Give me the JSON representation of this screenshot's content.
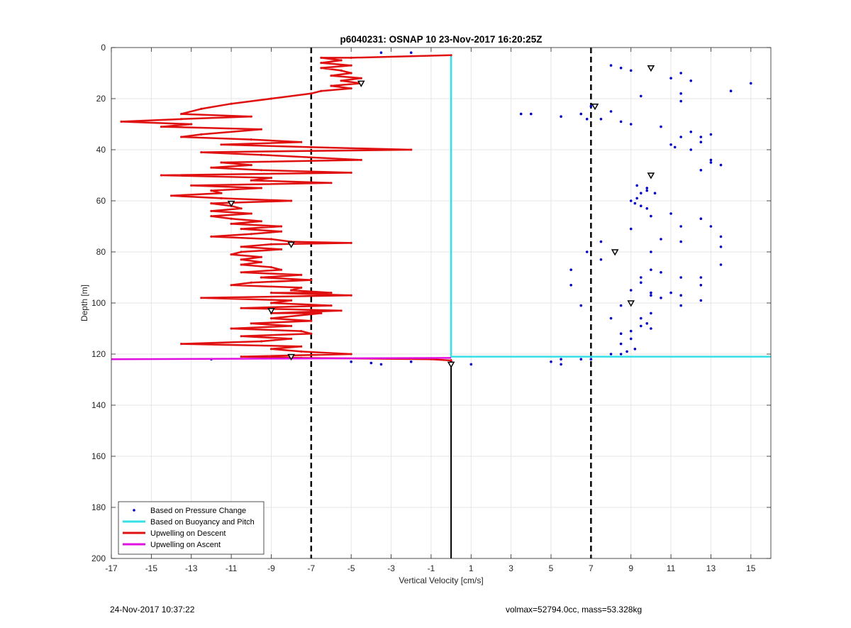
{
  "chart_data": {
    "type": "scatter",
    "title": "p6040231: OSNAP 10 23-Nov-2017 16:20:25Z",
    "xlabel": "Vertical Velocity [cm/s]",
    "ylabel": "Depth [m]",
    "xlim": [
      -17,
      16
    ],
    "ylim": [
      0,
      200
    ],
    "y_reversed": true,
    "grid": true,
    "xticks": [
      -17,
      -15,
      -13,
      -11,
      -9,
      -7,
      -5,
      -3,
      -1,
      1,
      3,
      5,
      7,
      9,
      11,
      13,
      15
    ],
    "yticks": [
      0,
      20,
      40,
      60,
      80,
      100,
      120,
      140,
      160,
      180,
      200
    ],
    "legend_position": "bottom-left",
    "vlines": [
      {
        "x": -7,
        "style": "dashed",
        "color": "#000000"
      },
      {
        "x": 7,
        "style": "dashed",
        "color": "#000000"
      }
    ],
    "series": [
      {
        "name": "Based on Pressure Change",
        "kind": "points",
        "color": "#0000cc",
        "points": [
          [
            -3.5,
            2
          ],
          [
            -2,
            2
          ],
          [
            8,
            7
          ],
          [
            8.5,
            8
          ],
          [
            9,
            9
          ],
          [
            11.5,
            10
          ],
          [
            11,
            12
          ],
          [
            12,
            13
          ],
          [
            15,
            14
          ],
          [
            14,
            17
          ],
          [
            11.5,
            18
          ],
          [
            9.5,
            19
          ],
          [
            11.5,
            21
          ],
          [
            7,
            23
          ],
          [
            8,
            25
          ],
          [
            3.5,
            26
          ],
          [
            4,
            26
          ],
          [
            5.5,
            27
          ],
          [
            6.5,
            26
          ],
          [
            6.8,
            28
          ],
          [
            7.5,
            28
          ],
          [
            8.5,
            29
          ],
          [
            9,
            30
          ],
          [
            10.5,
            31
          ],
          [
            12,
            33
          ],
          [
            13,
            34
          ],
          [
            11.5,
            35
          ],
          [
            12.5,
            35
          ],
          [
            12.5,
            37
          ],
          [
            11,
            38
          ],
          [
            11.2,
            39
          ],
          [
            12,
            40
          ],
          [
            13,
            44
          ],
          [
            13,
            45
          ],
          [
            13.5,
            46
          ],
          [
            12.5,
            48
          ],
          [
            9.3,
            54
          ],
          [
            9.8,
            55
          ],
          [
            9.5,
            57
          ],
          [
            10.2,
            57
          ],
          [
            9.8,
            56
          ],
          [
            9.3,
            59
          ],
          [
            9,
            60
          ],
          [
            9.2,
            61
          ],
          [
            9.5,
            62
          ],
          [
            9.8,
            63
          ],
          [
            10,
            66
          ],
          [
            11,
            65
          ],
          [
            12.5,
            67
          ],
          [
            11.5,
            70
          ],
          [
            13,
            70
          ],
          [
            9,
            71
          ],
          [
            13.5,
            74
          ],
          [
            10.5,
            75
          ],
          [
            11.5,
            76
          ],
          [
            7.5,
            76
          ],
          [
            13.5,
            78
          ],
          [
            10,
            80
          ],
          [
            6.8,
            80
          ],
          [
            7.5,
            83
          ],
          [
            13.5,
            85
          ],
          [
            6,
            87
          ],
          [
            10,
            87
          ],
          [
            10.5,
            88
          ],
          [
            9.5,
            90
          ],
          [
            11.5,
            90
          ],
          [
            12.5,
            90
          ],
          [
            9.5,
            92
          ],
          [
            12.5,
            93
          ],
          [
            6,
            93
          ],
          [
            10,
            96
          ],
          [
            11,
            96
          ],
          [
            9,
            95
          ],
          [
            10,
            97
          ],
          [
            11.5,
            97
          ],
          [
            10.5,
            98
          ],
          [
            12.5,
            99
          ],
          [
            9,
            100
          ],
          [
            6.5,
            101
          ],
          [
            8.5,
            101
          ],
          [
            11.5,
            101
          ],
          [
            10,
            104
          ],
          [
            9.5,
            106
          ],
          [
            8,
            106
          ],
          [
            9.8,
            108
          ],
          [
            9.5,
            109
          ],
          [
            10,
            110
          ],
          [
            9,
            111
          ],
          [
            8.5,
            112
          ],
          [
            9,
            114
          ],
          [
            8.5,
            116
          ],
          [
            9.2,
            118
          ],
          [
            8.8,
            119
          ],
          [
            8.5,
            120
          ],
          [
            8,
            120
          ],
          [
            7,
            122
          ],
          [
            6.5,
            122
          ],
          [
            5.5,
            122
          ],
          [
            5,
            123
          ],
          [
            5.5,
            124
          ],
          [
            -12,
            122
          ],
          [
            -5,
            123
          ],
          [
            -4,
            123.5
          ],
          [
            -3.5,
            124
          ],
          [
            -2,
            123
          ],
          [
            0,
            123
          ],
          [
            1,
            124
          ]
        ]
      },
      {
        "name": "Based on Buoyancy and Pitch",
        "kind": "line",
        "color": "#33e0e8",
        "points": [
          [
            0,
            3
          ],
          [
            0,
            121
          ],
          [
            16,
            121
          ]
        ]
      },
      {
        "name": "Upwelling on Descent",
        "kind": "line",
        "color": "#e01010",
        "points": [
          [
            0,
            3
          ],
          [
            -5,
            4
          ],
          [
            -6.5,
            4
          ],
          [
            -5.5,
            5
          ],
          [
            -6.5,
            6
          ],
          [
            -5,
            7
          ],
          [
            -6.5,
            8
          ],
          [
            -5.5,
            9
          ],
          [
            -5,
            10
          ],
          [
            -6,
            11
          ],
          [
            -4.5,
            12
          ],
          [
            -5.5,
            13
          ],
          [
            -4.5,
            14
          ],
          [
            -6,
            15
          ],
          [
            -5,
            16
          ],
          [
            -6.5,
            17
          ],
          [
            -7,
            18
          ],
          [
            -9,
            20
          ],
          [
            -11,
            22
          ],
          [
            -12.5,
            24
          ],
          [
            -13.5,
            26
          ],
          [
            -10,
            27
          ],
          [
            -13.5,
            28
          ],
          [
            -16.5,
            29
          ],
          [
            -13,
            30
          ],
          [
            -14.5,
            31
          ],
          [
            -9.5,
            32
          ],
          [
            -12.5,
            34
          ],
          [
            -13.5,
            35
          ],
          [
            -10,
            36
          ],
          [
            -7.5,
            37
          ],
          [
            -11.5,
            38
          ],
          [
            -7,
            39
          ],
          [
            -2,
            40
          ],
          [
            -12.5,
            41
          ],
          [
            -9.5,
            42
          ],
          [
            -4.5,
            44
          ],
          [
            -11.5,
            45
          ],
          [
            -10,
            46
          ],
          [
            -12,
            47
          ],
          [
            -9.5,
            48
          ],
          [
            -5,
            49
          ],
          [
            -14.5,
            50
          ],
          [
            -9,
            51
          ],
          [
            -10,
            52
          ],
          [
            -6,
            53
          ],
          [
            -13,
            54
          ],
          [
            -9.5,
            55
          ],
          [
            -12,
            56
          ],
          [
            -11.5,
            57
          ],
          [
            -14,
            58
          ],
          [
            -11.5,
            59
          ],
          [
            -8,
            60
          ],
          [
            -12,
            61
          ],
          [
            -11,
            62
          ],
          [
            -10.5,
            63
          ],
          [
            -12,
            64
          ],
          [
            -10,
            65
          ],
          [
            -12,
            66
          ],
          [
            -11,
            67
          ],
          [
            -9.5,
            68
          ],
          [
            -11,
            69
          ],
          [
            -8.5,
            70
          ],
          [
            -10.5,
            71
          ],
          [
            -8.5,
            72
          ],
          [
            -10,
            73
          ],
          [
            -12,
            74
          ],
          [
            -9,
            75
          ],
          [
            -8,
            76
          ],
          [
            -5,
            76.5
          ],
          [
            -9,
            77
          ],
          [
            -10.5,
            78
          ],
          [
            -8.5,
            79
          ],
          [
            -10.5,
            80
          ],
          [
            -11,
            81
          ],
          [
            -9.5,
            82
          ],
          [
            -10.5,
            83
          ],
          [
            -9.5,
            84
          ],
          [
            -10.5,
            85
          ],
          [
            -9,
            86
          ],
          [
            -8.5,
            87
          ],
          [
            -10.5,
            88
          ],
          [
            -7.5,
            89
          ],
          [
            -9.5,
            90
          ],
          [
            -7,
            91
          ],
          [
            -10,
            92
          ],
          [
            -11,
            93
          ],
          [
            -7.5,
            94
          ],
          [
            -8,
            95
          ],
          [
            -6,
            96
          ],
          [
            -9,
            96
          ],
          [
            -5,
            97
          ],
          [
            -12.5,
            98
          ],
          [
            -8,
            99
          ],
          [
            -9,
            100
          ],
          [
            -6,
            101
          ],
          [
            -10.5,
            102
          ],
          [
            -5.5,
            103
          ],
          [
            -9,
            104
          ],
          [
            -6.5,
            104
          ],
          [
            -9,
            106
          ],
          [
            -7,
            107
          ],
          [
            -10,
            108
          ],
          [
            -8,
            109
          ],
          [
            -11,
            110
          ],
          [
            -7.5,
            111
          ],
          [
            -7,
            112
          ],
          [
            -10.5,
            113
          ],
          [
            -8,
            114
          ],
          [
            -9.5,
            115
          ],
          [
            -13.5,
            116
          ],
          [
            -7.5,
            117
          ],
          [
            -9,
            118
          ],
          [
            -7.5,
            119
          ],
          [
            -5,
            120
          ],
          [
            -10.5,
            121
          ],
          [
            -7.5,
            121.5
          ],
          [
            -1,
            122
          ],
          [
            0,
            122.5
          ]
        ]
      },
      {
        "name": "Upwelling on Ascent",
        "kind": "line",
        "color": "#e010e0",
        "points": [
          [
            -17,
            122
          ],
          [
            0,
            121.5
          ]
        ]
      }
    ],
    "ascent_marker_line": {
      "x": 0,
      "from": 122,
      "to": 200,
      "color": "#000000"
    },
    "triangle_markers": [
      [
        -4.5,
        14
      ],
      [
        -11,
        61
      ],
      [
        -8,
        77
      ],
      [
        -9,
        103
      ],
      [
        -8,
        121
      ],
      [
        0,
        124
      ],
      [
        10,
        8
      ],
      [
        7.2,
        23
      ],
      [
        10,
        50
      ],
      [
        8.2,
        80
      ],
      [
        9,
        100
      ]
    ]
  },
  "footer": {
    "timestamp": "24-Nov-2017 10:37:22",
    "summary": "volmax=52794.0cc, mass=53.328kg"
  }
}
